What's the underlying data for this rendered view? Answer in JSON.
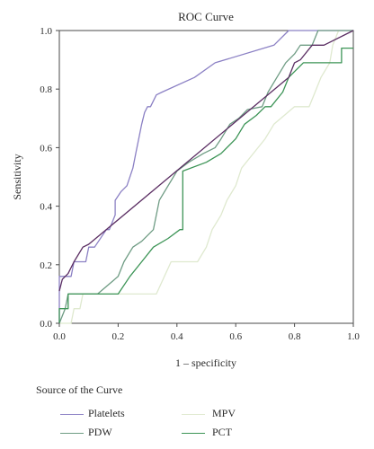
{
  "chart_data": {
    "type": "line",
    "title": "ROC Curve",
    "xlabel": "1 – specificity",
    "ylabel": "Sensitivity",
    "xlim": [
      0.0,
      1.0
    ],
    "ylim": [
      0.0,
      1.0
    ],
    "xticks": [
      "0.0",
      "0.2",
      "0.4",
      "0.6",
      "0.8",
      "1.0"
    ],
    "yticks": [
      "0.0",
      "0.2",
      "0.4",
      "0.6",
      "0.8",
      "1.0"
    ],
    "grid": false,
    "legend_title": "Source of the Curve",
    "legend_position": "bottom",
    "series": [
      {
        "name": "Platelets",
        "color": "#8b80c4",
        "step": true,
        "x": [
          0.0,
          0.0,
          0.04,
          0.05,
          0.07,
          0.09,
          0.1,
          0.12,
          0.16,
          0.17,
          0.19,
          0.19,
          0.21,
          0.23,
          0.25,
          0.26,
          0.27,
          0.28,
          0.29,
          0.3,
          0.31,
          0.33,
          0.35,
          0.46,
          0.53,
          0.73,
          0.78,
          0.8,
          1.0
        ],
        "y": [
          0.0,
          0.16,
          0.16,
          0.21,
          0.21,
          0.21,
          0.26,
          0.26,
          0.32,
          0.32,
          0.37,
          0.42,
          0.45,
          0.47,
          0.53,
          0.58,
          0.63,
          0.68,
          0.72,
          0.74,
          0.74,
          0.78,
          0.79,
          0.84,
          0.89,
          0.95,
          1.0,
          1.0,
          1.0
        ]
      },
      {
        "name": "MPV",
        "color": "#dfe9cf",
        "step": false,
        "x": [
          0.0,
          0.04,
          0.05,
          0.07,
          0.08,
          0.1,
          0.33,
          0.38,
          0.47,
          0.5,
          0.52,
          0.55,
          0.57,
          0.6,
          0.62,
          0.66,
          0.7,
          0.73,
          0.8,
          0.85,
          0.87,
          0.89,
          0.92,
          0.93,
          0.95,
          0.97,
          1.0
        ],
        "y": [
          0.0,
          0.0,
          0.05,
          0.05,
          0.1,
          0.1,
          0.1,
          0.21,
          0.21,
          0.26,
          0.32,
          0.37,
          0.42,
          0.47,
          0.53,
          0.58,
          0.63,
          0.68,
          0.74,
          0.74,
          0.79,
          0.84,
          0.89,
          0.95,
          1.0,
          1.0,
          1.0
        ]
      },
      {
        "name": "PDW",
        "color": "#6f9c84",
        "step": false,
        "x": [
          0.0,
          0.02,
          0.03,
          0.1,
          0.13,
          0.2,
          0.22,
          0.25,
          0.28,
          0.32,
          0.34,
          0.4,
          0.44,
          0.49,
          0.53,
          0.55,
          0.58,
          0.61,
          0.64,
          0.69,
          0.71,
          0.74,
          0.77,
          0.8,
          0.82,
          0.86,
          0.88,
          0.96,
          1.0
        ],
        "y": [
          0.0,
          0.05,
          0.1,
          0.1,
          0.1,
          0.16,
          0.21,
          0.26,
          0.28,
          0.32,
          0.42,
          0.52,
          0.55,
          0.58,
          0.6,
          0.63,
          0.68,
          0.7,
          0.73,
          0.74,
          0.79,
          0.84,
          0.89,
          0.92,
          0.95,
          0.95,
          1.0,
          1.0,
          1.0
        ]
      },
      {
        "name": "PCT",
        "color": "#3c9456",
        "step": true,
        "x": [
          0.0,
          0.0,
          0.03,
          0.03,
          0.04,
          0.14,
          0.17,
          0.2,
          0.24,
          0.28,
          0.32,
          0.37,
          0.41,
          0.42,
          0.42,
          0.5,
          0.55,
          0.6,
          0.63,
          0.67,
          0.7,
          0.72,
          0.76,
          0.78,
          0.83,
          0.86,
          0.9,
          0.96,
          0.96,
          1.0
        ],
        "y": [
          0.0,
          0.05,
          0.05,
          0.1,
          0.1,
          0.1,
          0.1,
          0.1,
          0.16,
          0.21,
          0.26,
          0.29,
          0.32,
          0.32,
          0.52,
          0.55,
          0.58,
          0.63,
          0.68,
          0.71,
          0.74,
          0.74,
          0.79,
          0.84,
          0.89,
          0.89,
          0.89,
          0.89,
          0.94,
          0.94
        ]
      },
      {
        "name": "",
        "color": "#5a2d62",
        "step": false,
        "x": [
          0.0,
          0.01,
          0.03,
          0.05,
          0.08,
          0.1,
          0.78,
          0.8,
          0.82,
          0.86,
          0.9,
          1.0
        ],
        "y": [
          0.11,
          0.15,
          0.17,
          0.21,
          0.26,
          0.27,
          0.84,
          0.89,
          0.9,
          0.95,
          0.95,
          1.0
        ]
      }
    ],
    "legend": [
      {
        "name": "Platelets",
        "color": "#8b80c4"
      },
      {
        "name": "MPV",
        "color": "#dfe9cf"
      },
      {
        "name": "PDW",
        "color": "#6f9c84"
      },
      {
        "name": "PCT",
        "color": "#3c9456"
      }
    ]
  }
}
